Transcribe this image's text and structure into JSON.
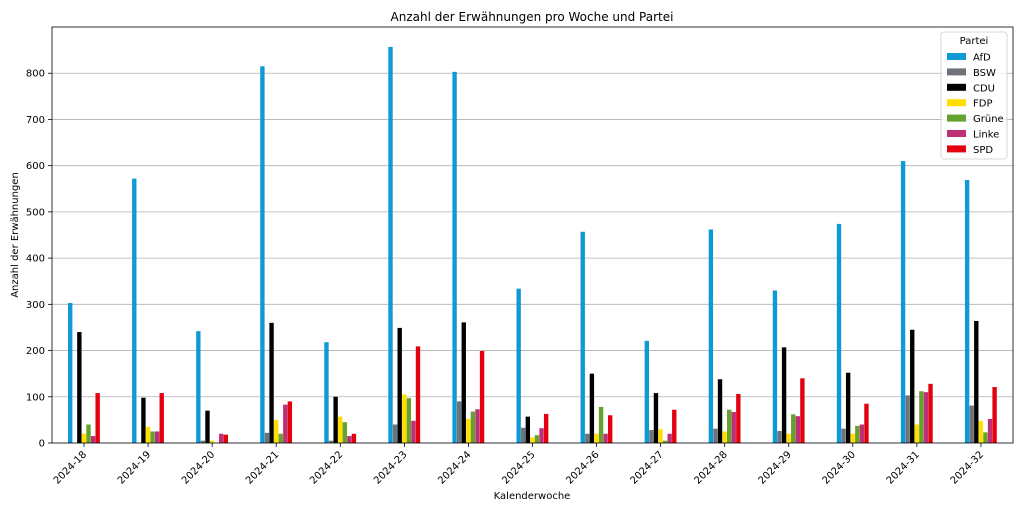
{
  "chart_data": {
    "type": "bar",
    "title": "Anzahl der Erwähnungen pro Woche und Partei",
    "xlabel": "Kalenderwoche",
    "ylabel": "Anzahl der Erwähnungen",
    "ylim": [
      0,
      900
    ],
    "yticks": [
      0,
      100,
      200,
      300,
      400,
      500,
      600,
      700,
      800
    ],
    "grid": "y",
    "legend": {
      "title": "Partei",
      "position": "top-right"
    },
    "categories": [
      "2024-18",
      "2024-19",
      "2024-20",
      "2024-21",
      "2024-22",
      "2024-23",
      "2024-24",
      "2024-25",
      "2024-26",
      "2024-27",
      "2024-28",
      "2024-29",
      "2024-30",
      "2024-31",
      "2024-32"
    ],
    "series": [
      {
        "name": "AfD",
        "color": "#0e9ad7",
        "values": [
          303,
          572,
          242,
          815,
          218,
          857,
          803,
          334,
          457,
          221,
          462,
          330,
          474,
          610,
          569
        ]
      },
      {
        "name": "BSW",
        "color": "#6e7378",
        "values": [
          0,
          0,
          5,
          22,
          5,
          40,
          90,
          33,
          20,
          28,
          31,
          26,
          31,
          103,
          81
        ]
      },
      {
        "name": "CDU",
        "color": "#000000",
        "values": [
          240,
          98,
          70,
          260,
          100,
          249,
          261,
          57,
          150,
          108,
          138,
          207,
          152,
          245,
          264
        ]
      },
      {
        "name": "FDP",
        "color": "#ffde00",
        "values": [
          20,
          35,
          5,
          50,
          57,
          105,
          52,
          12,
          20,
          30,
          25,
          20,
          20,
          40,
          48
        ]
      },
      {
        "name": "Grüne",
        "color": "#64a12d",
        "values": [
          40,
          25,
          0,
          20,
          45,
          97,
          68,
          17,
          78,
          5,
          72,
          62,
          37,
          112,
          23
        ]
      },
      {
        "name": "Linke",
        "color": "#be3075",
        "values": [
          15,
          25,
          20,
          83,
          15,
          48,
          73,
          32,
          20,
          20,
          67,
          58,
          40,
          110,
          52
        ]
      },
      {
        "name": "SPD",
        "color": "#e3000f",
        "values": [
          108,
          108,
          18,
          90,
          20,
          209,
          199,
          63,
          60,
          72,
          106,
          140,
          85,
          128,
          121
        ]
      }
    ]
  }
}
